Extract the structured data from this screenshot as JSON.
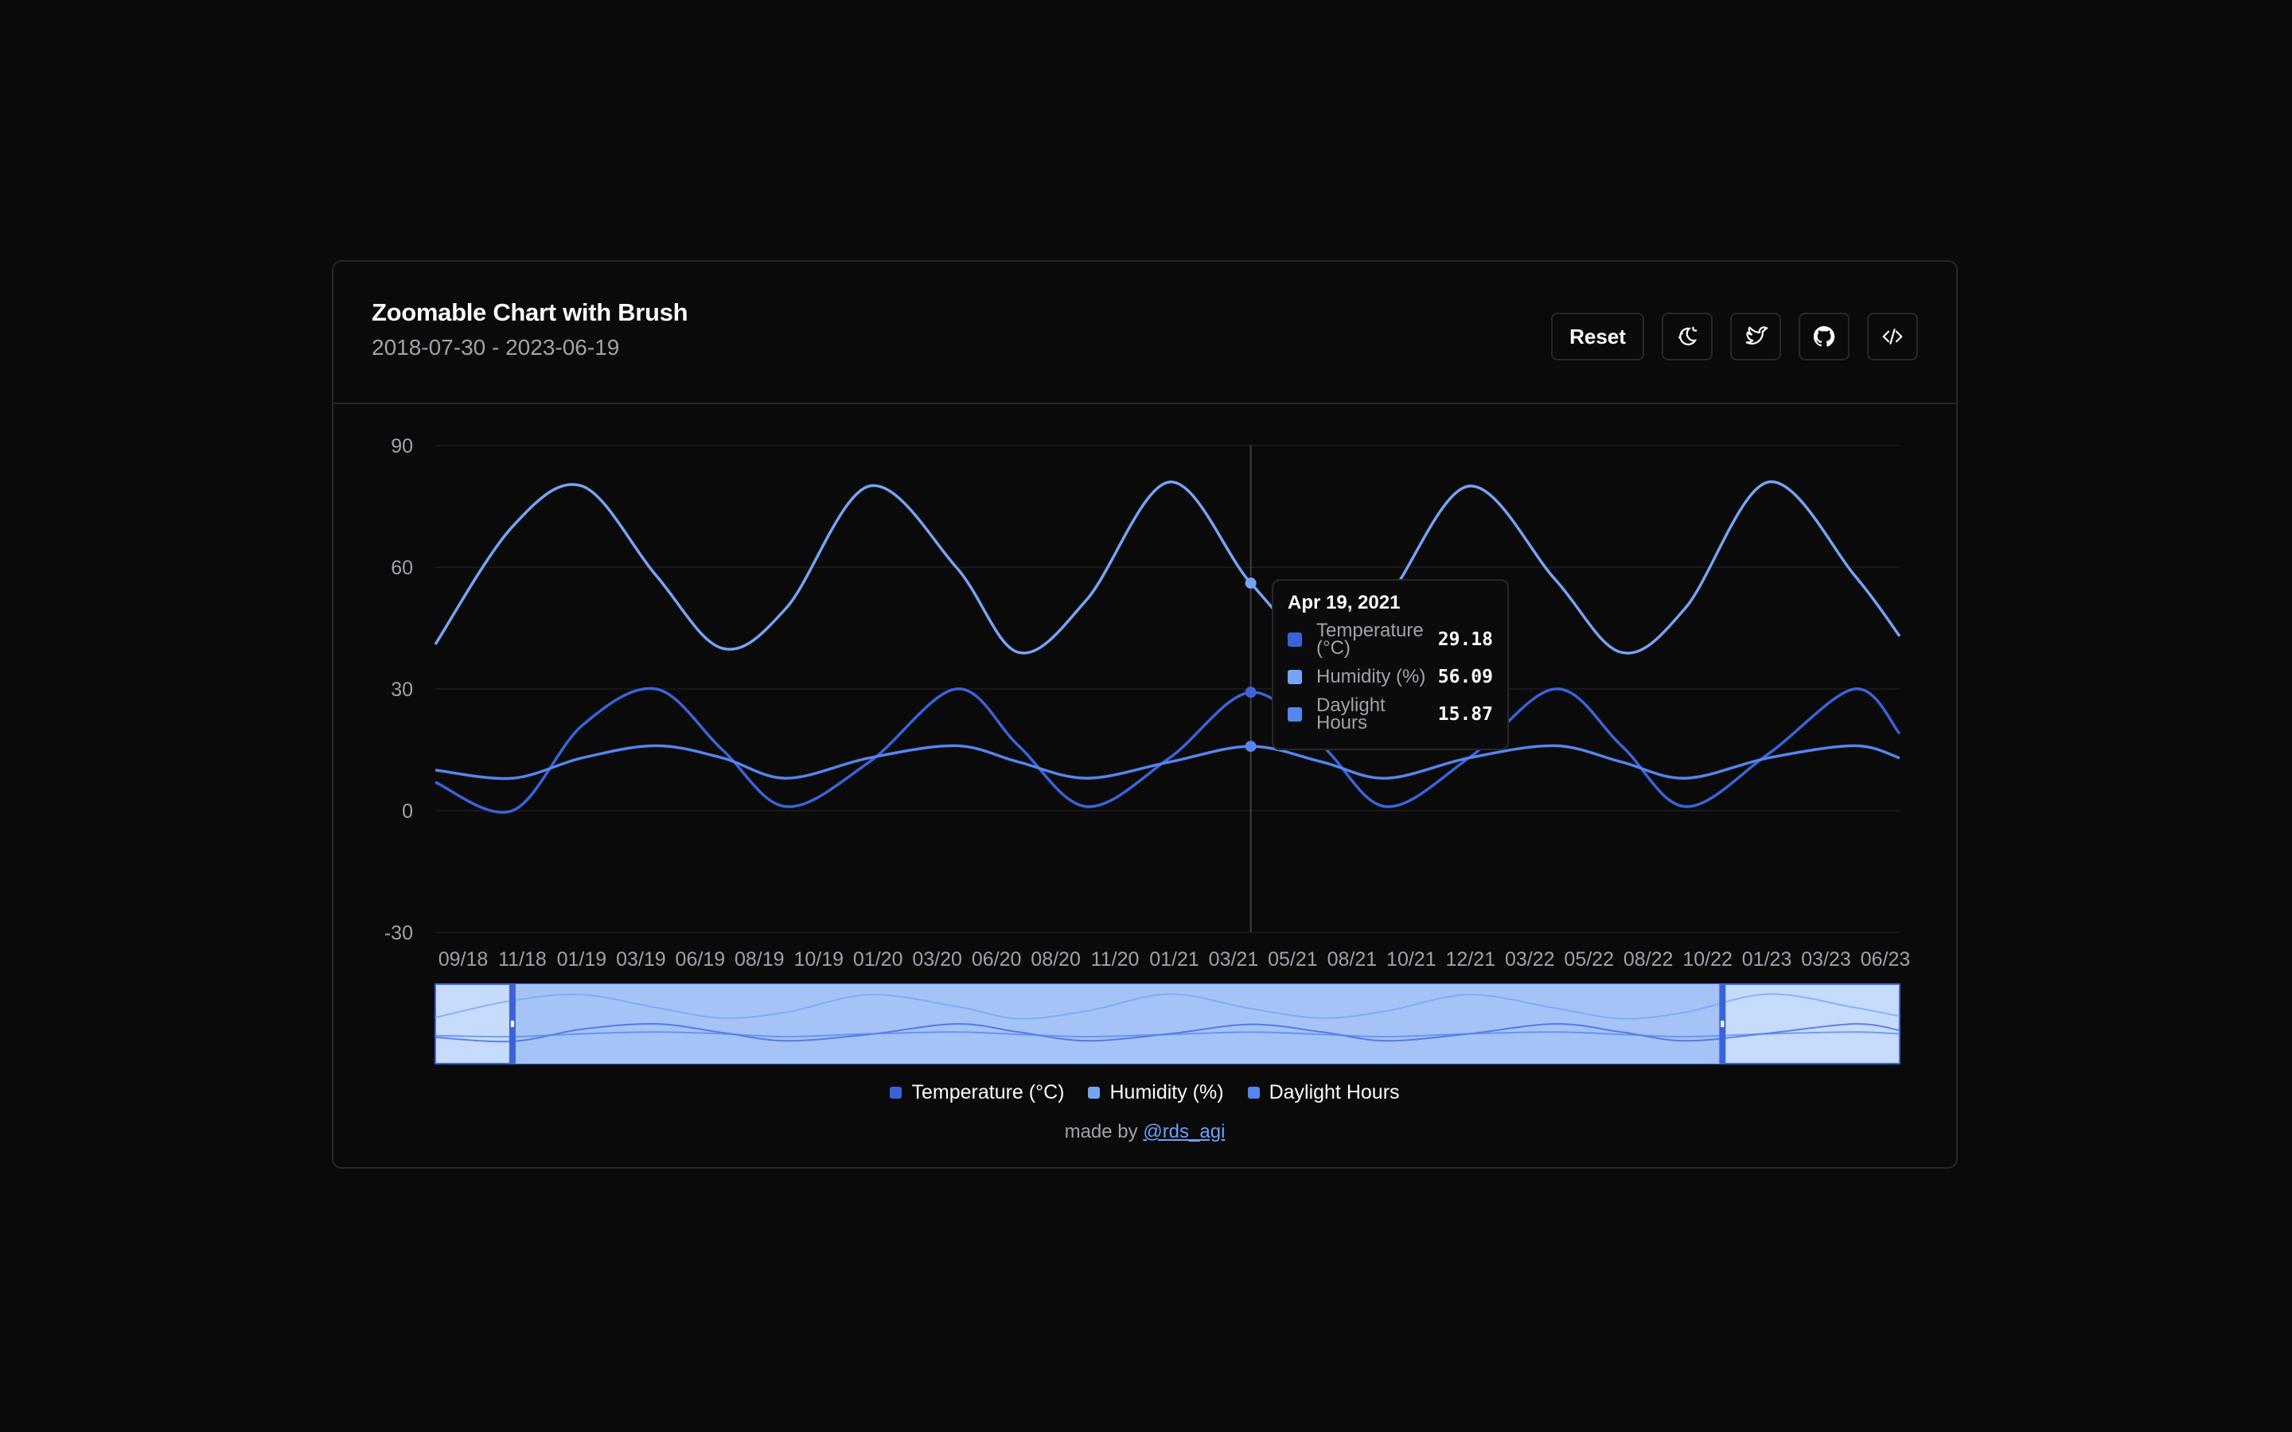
{
  "header": {
    "title": "Zoomable Chart with Brush",
    "subtitle": "2018-07-30 - 2023-06-19"
  },
  "toolbar": {
    "reset_label": "Reset",
    "icons": [
      "theme-toggle-icon",
      "twitter-icon",
      "github-icon",
      "code-icon"
    ]
  },
  "colors": {
    "temperature": "#3b63d9",
    "humidity": "#76a4f5",
    "daylight": "#5585ee",
    "background": "#0a0a0b",
    "border": "#27272a"
  },
  "chart_data": {
    "type": "line",
    "x_tick_labels": [
      "09/18",
      "11/18",
      "01/19",
      "03/19",
      "06/19",
      "08/19",
      "10/19",
      "01/20",
      "03/20",
      "06/20",
      "08/20",
      "11/20",
      "01/21",
      "03/21",
      "05/21",
      "08/21",
      "10/21",
      "12/21",
      "03/22",
      "05/22",
      "08/22",
      "10/22",
      "01/23",
      "03/23",
      "06/23"
    ],
    "y_ticks": [
      90,
      60,
      30,
      0,
      -30
    ],
    "ylim": [
      -30,
      90
    ],
    "xlim": [
      "2018-07-30",
      "2023-06-19"
    ],
    "grid": true,
    "series": [
      {
        "name": "Temperature (°C)",
        "color": "#3b63d9",
        "x": [
          "2018-07-30",
          "2018-11-01",
          "2019-01-25",
          "2019-04-25",
          "2019-07-15",
          "2019-10-01",
          "2020-01-10",
          "2020-04-25",
          "2020-07-10",
          "2020-10-01",
          "2021-01-10",
          "2021-04-19",
          "2021-07-15",
          "2021-10-01",
          "2022-01-10",
          "2022-04-25",
          "2022-07-15",
          "2022-10-01",
          "2023-01-10",
          "2023-04-25",
          "2023-06-19"
        ],
        "values": [
          7,
          0,
          21,
          30,
          15,
          1,
          12,
          30,
          16,
          1,
          13,
          29.18,
          16,
          1,
          13,
          30,
          16,
          1,
          14,
          30,
          19
        ]
      },
      {
        "name": "Humidity (%)",
        "color": "#76a4f5",
        "x": [
          "2018-07-30",
          "2018-11-01",
          "2019-01-25",
          "2019-04-25",
          "2019-07-15",
          "2019-10-01",
          "2020-01-10",
          "2020-04-25",
          "2020-07-10",
          "2020-10-01",
          "2021-01-10",
          "2021-04-19",
          "2021-07-15",
          "2021-10-01",
          "2022-01-10",
          "2022-04-25",
          "2022-07-15",
          "2022-10-01",
          "2023-01-10",
          "2023-04-25",
          "2023-06-19"
        ],
        "values": [
          41,
          70,
          80,
          58,
          40,
          50,
          80,
          60,
          39,
          52,
          81,
          56.09,
          40,
          52,
          80,
          57,
          39,
          50,
          81,
          58,
          43
        ]
      },
      {
        "name": "Daylight Hours",
        "color": "#5585ee",
        "x": [
          "2018-07-30",
          "2018-11-01",
          "2019-01-25",
          "2019-04-25",
          "2019-07-15",
          "2019-10-01",
          "2020-01-10",
          "2020-04-25",
          "2020-07-10",
          "2020-10-01",
          "2021-01-10",
          "2021-04-19",
          "2021-07-15",
          "2021-10-01",
          "2022-01-10",
          "2022-04-25",
          "2022-07-15",
          "2022-10-01",
          "2023-01-10",
          "2023-04-25",
          "2023-06-19"
        ],
        "values": [
          10,
          8,
          13,
          16,
          13,
          8,
          13,
          16,
          12,
          8,
          12,
          15.87,
          12,
          8,
          13,
          16,
          12,
          8,
          13,
          16,
          13
        ]
      }
    ],
    "brush": {
      "selection": [
        "2018-11-01",
        "2022-11-15"
      ]
    },
    "tooltip": {
      "date": "Apr 19, 2021",
      "x": "2021-04-19",
      "rows": [
        {
          "label": "Temperature (°C)",
          "value": "29.18"
        },
        {
          "label": "Humidity (%)",
          "value": "56.09"
        },
        {
          "label": "Daylight Hours",
          "value": "15.87"
        }
      ]
    }
  },
  "legend": [
    "Temperature (°C)",
    "Humidity (%)",
    "Daylight Hours"
  ],
  "footer": {
    "prefix": "made by",
    "link_text": "@rds_agi"
  }
}
